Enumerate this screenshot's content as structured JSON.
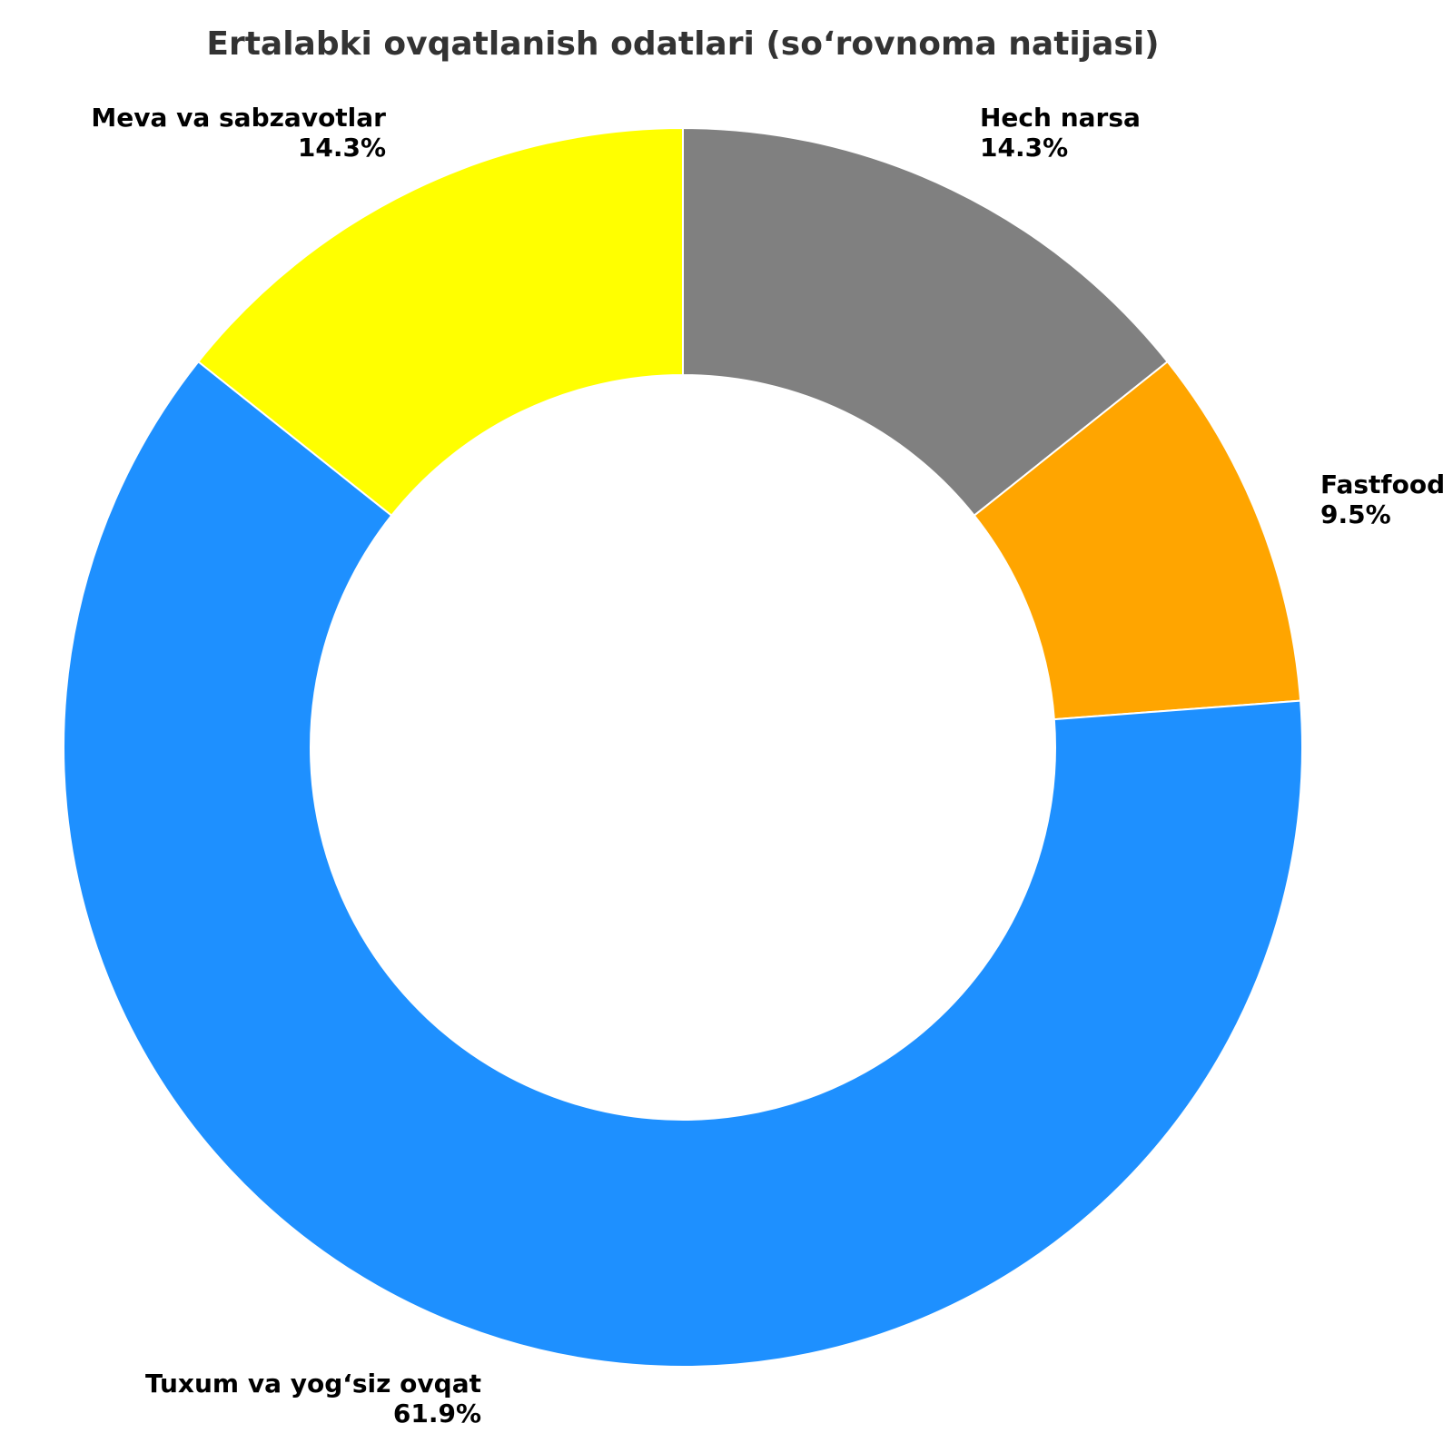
{
  "chart_data": {
    "type": "pie",
    "variant": "donut",
    "title": "Ertalabki ovqatlanish odatlari (so‘rovnoma natijasi)",
    "start_angle": "top, clockwise",
    "slices": [
      {
        "label": "Hech narsa",
        "percent_label": "14.3%",
        "value": 14.3,
        "color": "#808080"
      },
      {
        "label": "Fastfood",
        "percent_label": "9.5%",
        "value": 9.5,
        "color": "#FFA500"
      },
      {
        "label": "Tuxum va yog‘siz ovqat",
        "percent_label": "61.9%",
        "value": 61.9,
        "color": "#1E90FF"
      },
      {
        "label": "Meva va sabzavotlar",
        "percent_label": "14.3%",
        "value": 14.3,
        "color": "#FFFF00"
      }
    ]
  }
}
